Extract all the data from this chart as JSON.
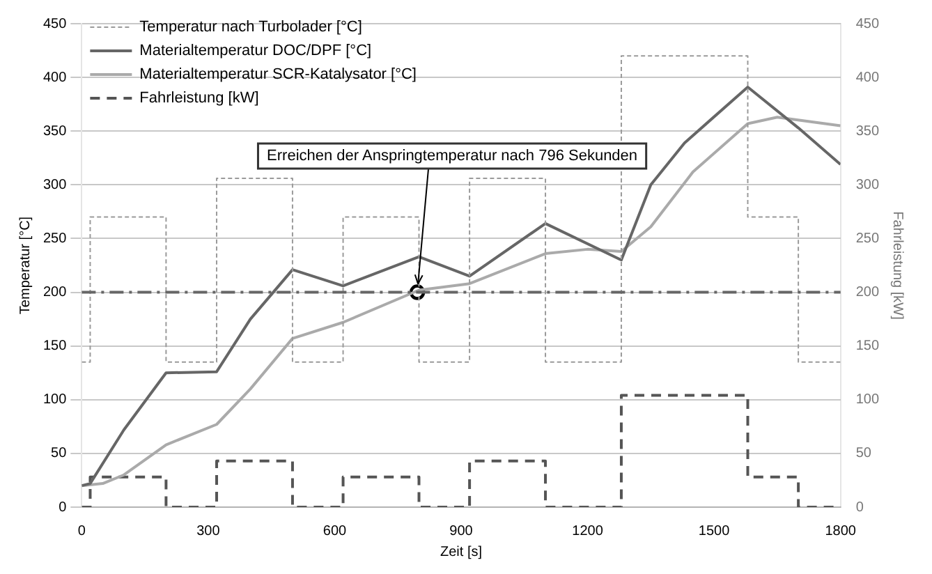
{
  "chart_data": {
    "type": "line",
    "xlabel": "Zeit [s]",
    "ylabel": "Temperatur [°C]",
    "y2label": "Fahrleistung [kW]",
    "xlim": [
      0,
      1800
    ],
    "xticks": [
      0,
      300,
      600,
      900,
      1200,
      1500,
      1800
    ],
    "ylim": [
      0,
      450
    ],
    "yticks": [
      0,
      50,
      100,
      150,
      200,
      250,
      300,
      350,
      400,
      450
    ],
    "y2lim": [
      0,
      450
    ],
    "y2ticks": [
      0,
      50,
      100,
      150,
      200,
      250,
      300,
      350,
      400,
      450
    ],
    "grid": "y",
    "legend": "top left",
    "marker": "none",
    "series": [
      {
        "name": "Temperatur nach Turbolader [°C]",
        "type": "step",
        "color": "#9a9a9a",
        "line_style": "dotted",
        "x": [
          0,
          20,
          200,
          320,
          500,
          620,
          800,
          920,
          1100,
          1280,
          1580,
          1700,
          1800
        ],
        "values": [
          135,
          270,
          135,
          306,
          135,
          270,
          135,
          306,
          135,
          420,
          270,
          135,
          135
        ]
      },
      {
        "name": "Materialtemperatur DOC/DPF [°C]",
        "type": "line",
        "color": "#666666",
        "line_style": "solid",
        "x": [
          0,
          20,
          100,
          200,
          320,
          400,
          500,
          620,
          800,
          920,
          1100,
          1280,
          1350,
          1430,
          1580,
          1700,
          1800
        ],
        "values": [
          20,
          22,
          72,
          125,
          126,
          175,
          221,
          206,
          233,
          215,
          264,
          230,
          300,
          339,
          391,
          353,
          319
        ]
      },
      {
        "name": "Materialtemperatur SCR-Katalysator [°C]",
        "type": "line",
        "color": "#aaaaaa",
        "line_style": "solid",
        "x": [
          0,
          50,
          100,
          200,
          320,
          400,
          500,
          620,
          800,
          920,
          1100,
          1200,
          1280,
          1350,
          1450,
          1580,
          1650,
          1800
        ],
        "values": [
          20,
          22,
          30,
          58,
          77,
          110,
          157,
          172,
          202,
          208,
          236,
          240,
          238,
          261,
          312,
          357,
          363,
          355
        ]
      },
      {
        "name": "Fahrleistung [kW]",
        "type": "step",
        "axis": "y2",
        "color": "#555555",
        "line_style": "dashed",
        "x": [
          0,
          20,
          200,
          320,
          500,
          620,
          800,
          920,
          1100,
          1280,
          1580,
          1700,
          1800
        ],
        "values": [
          0,
          28,
          0,
          43,
          0,
          28,
          0,
          43,
          0,
          104,
          28,
          0,
          0
        ]
      },
      {
        "type": "scatter",
        "marker": "circle",
        "color": "#000000",
        "x": [
          796
        ],
        "values": [
          200
        ]
      }
    ],
    "ref_lines": [
      {
        "axis": "y",
        "value": 200,
        "color": "#666666",
        "line_style": "dashed"
      }
    ],
    "annotations": [
      {
        "text": "Erreichen der Anspringtemperatur nach 796 Sekunden",
        "x": 796,
        "y": 200
      }
    ]
  }
}
